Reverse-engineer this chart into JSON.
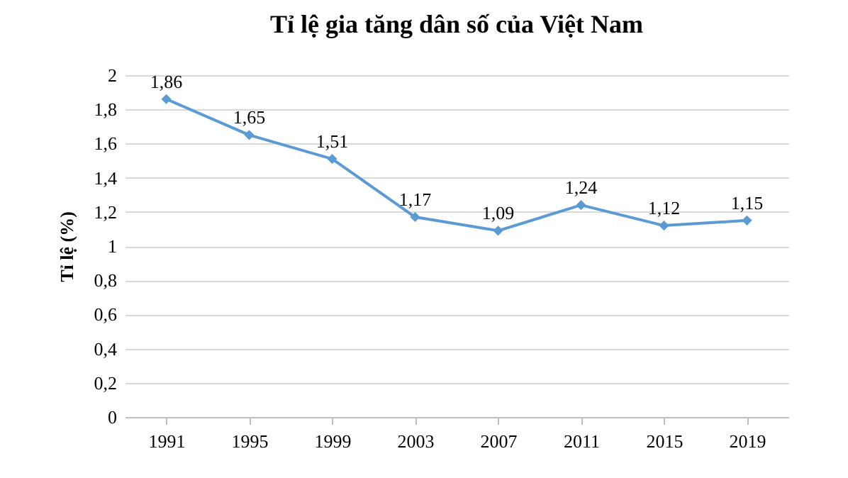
{
  "chart_data": {
    "type": "line",
    "title": "Tỉ lệ gia tăng dân số của Việt Nam",
    "ylabel": "Tỉ lệ (%)",
    "categories": [
      "1991",
      "1995",
      "1999",
      "2003",
      "2007",
      "2011",
      "2015",
      "2019"
    ],
    "series": [
      {
        "color": "#5b9bd5",
        "values": [
          1.86,
          1.65,
          1.51,
          1.17,
          1.09,
          1.24,
          1.12,
          1.15
        ],
        "value_labels": [
          "1,86",
          "1,65",
          "1,51",
          "1,17",
          "1,09",
          "1,24",
          "1,12",
          "1,15"
        ]
      }
    ],
    "ylim": [
      0,
      2
    ],
    "yticks": [
      0,
      {
        "value": 0.2,
        "label": "0,2"
      },
      {
        "value": 0.4,
        "label": "0,4"
      },
      {
        "value": 0.6,
        "label": "0,6"
      },
      {
        "value": 0.8,
        "label": "0,8"
      },
      1,
      {
        "value": 1.2,
        "label": "1,2"
      },
      {
        "value": 1.4,
        "label": "1,4"
      },
      {
        "value": 1.6,
        "label": "1,6"
      },
      {
        "value": 1.8,
        "label": "1,8"
      },
      2
    ],
    "grid": "y",
    "marker": "diamond",
    "line_style": "solid"
  }
}
